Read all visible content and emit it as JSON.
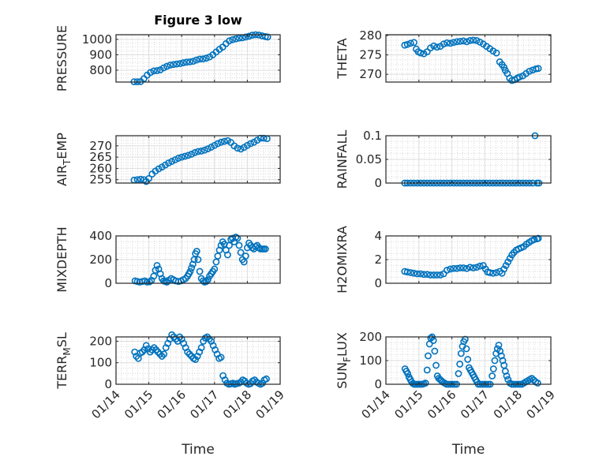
{
  "figure_title": "Figure 3 low",
  "chart_data": [
    {
      "type": "scatter",
      "id": "pressure",
      "title": "Figure 3 low",
      "ylabel": "PRESSURE",
      "ylabel_sub": null,
      "xlabel": "",
      "ylim": [
        723,
        1030
      ],
      "yticks": [
        800,
        900,
        1000
      ],
      "xlim_days": [
        0,
        5
      ],
      "xticks": [
        "01/14",
        "01/15",
        "01/16",
        "01/17",
        "01/18",
        "01/19"
      ],
      "show_xtick_labels": false,
      "grid": true,
      "marker": "o",
      "x_days": [
        0.55,
        0.65,
        0.75,
        0.85,
        0.95,
        1.05,
        1.15,
        1.25,
        1.35,
        1.45,
        1.55,
        1.65,
        1.75,
        1.85,
        1.95,
        2.05,
        2.15,
        2.25,
        2.35,
        2.45,
        2.55,
        2.65,
        2.75,
        2.85,
        2.95,
        3.05,
        3.15,
        3.25,
        3.35,
        3.45,
        3.55,
        3.65,
        3.75,
        3.85,
        3.95,
        4.05,
        4.15,
        4.25,
        4.35,
        4.45,
        4.55,
        4.62
      ],
      "y": [
        725,
        725,
        726,
        745,
        768,
        785,
        795,
        797,
        802,
        815,
        825,
        833,
        837,
        840,
        843,
        848,
        852,
        854,
        858,
        866,
        872,
        873,
        878,
        886,
        900,
        918,
        935,
        950,
        972,
        990,
        998,
        1003,
        1008,
        1010,
        1015,
        1020,
        1027,
        1030,
        1028,
        1023,
        1018,
        1015
      ]
    },
    {
      "type": "scatter",
      "id": "theta",
      "ylabel": "THETA",
      "ylabel_sub": null,
      "xlabel": "",
      "ylim": [
        268,
        280.2
      ],
      "yticks": [
        270,
        275,
        280
      ],
      "xlim_days": [
        0,
        5
      ],
      "xticks": [
        "01/14",
        "01/15",
        "01/16",
        "01/17",
        "01/18",
        "01/19"
      ],
      "show_xtick_labels": false,
      "grid": true,
      "marker": "o",
      "x_days": [
        0.57,
        0.65,
        0.75,
        0.85,
        0.92,
        0.98,
        1.05,
        1.15,
        1.25,
        1.35,
        1.45,
        1.55,
        1.65,
        1.75,
        1.85,
        1.95,
        2.05,
        2.15,
        2.25,
        2.35,
        2.45,
        2.55,
        2.65,
        2.75,
        2.85,
        2.95,
        3.05,
        3.15,
        3.25,
        3.35,
        3.45,
        3.52,
        3.58,
        3.62,
        3.68,
        3.75,
        3.82,
        3.9,
        3.98,
        4.05,
        4.15,
        4.25,
        4.35,
        4.45,
        4.55,
        4.62
      ],
      "y": [
        277.5,
        277.7,
        278.0,
        278.2,
        276.5,
        275.8,
        275.5,
        275.3,
        275.8,
        276.8,
        277.3,
        277.0,
        277.2,
        277.8,
        278.1,
        278.0,
        278.2,
        278.4,
        278.5,
        278.6,
        278.4,
        278.7,
        278.8,
        278.7,
        278.3,
        277.8,
        277.2,
        276.6,
        276.0,
        275.5,
        273.2,
        272.5,
        271.8,
        271.0,
        270.2,
        269.0,
        268.4,
        268.6,
        269.0,
        269.3,
        269.6,
        270.2,
        270.8,
        271.1,
        271.4,
        271.5
      ]
    },
    {
      "type": "scatter",
      "id": "air_temp",
      "ylabel": "AIR",
      "ylabel_sub": "T",
      "ylabel_rest": "EMP",
      "xlabel": "",
      "ylim": [
        253.5,
        274.5
      ],
      "yticks": [
        255,
        260,
        265,
        270
      ],
      "xlim_days": [
        0,
        5
      ],
      "xticks": [
        "01/14",
        "01/15",
        "01/16",
        "01/17",
        "01/18",
        "01/19"
      ],
      "show_xtick_labels": false,
      "grid": true,
      "marker": "o",
      "x_days": [
        0.55,
        0.65,
        0.75,
        0.85,
        0.92,
        1.0,
        1.1,
        1.2,
        1.3,
        1.4,
        1.5,
        1.6,
        1.7,
        1.8,
        1.9,
        2.0,
        2.1,
        2.2,
        2.3,
        2.4,
        2.5,
        2.6,
        2.7,
        2.8,
        2.9,
        3.0,
        3.1,
        3.2,
        3.3,
        3.4,
        3.5,
        3.6,
        3.7,
        3.8,
        3.9,
        4.0,
        4.1,
        4.2,
        4.3,
        4.4,
        4.5,
        4.6
      ],
      "y": [
        254.8,
        255.0,
        255.2,
        255.0,
        254.2,
        255.5,
        257.5,
        258.8,
        259.8,
        260.6,
        261.5,
        262.4,
        263.1,
        263.8,
        264.5,
        265.0,
        265.4,
        265.8,
        266.3,
        267.0,
        267.5,
        267.7,
        268.1,
        268.7,
        269.4,
        270.2,
        271.0,
        271.6,
        272.0,
        272.3,
        271.5,
        270.0,
        269.0,
        268.6,
        269.3,
        270.2,
        271.0,
        271.6,
        272.5,
        273.4,
        273.4,
        273.2
      ]
    },
    {
      "type": "scatter",
      "id": "rainfall",
      "ylabel": "RAINFALL",
      "ylabel_sub": null,
      "xlabel": "",
      "ylim": [
        0,
        0.1
      ],
      "yticks": [
        0,
        0.05,
        0.1
      ],
      "ytick_labels": [
        "0",
        "0.05",
        "0.1"
      ],
      "xlim_days": [
        0,
        5
      ],
      "xticks": [
        "01/14",
        "01/15",
        "01/16",
        "01/17",
        "01/18",
        "01/19"
      ],
      "show_xtick_labels": false,
      "grid": true,
      "marker": "o",
      "x_days": [
        0.57,
        0.65,
        0.75,
        0.85,
        0.95,
        1.05,
        1.15,
        1.25,
        1.35,
        1.45,
        1.55,
        1.65,
        1.75,
        1.85,
        1.95,
        2.05,
        2.15,
        2.25,
        2.35,
        2.45,
        2.55,
        2.65,
        2.75,
        2.85,
        2.95,
        3.05,
        3.15,
        3.25,
        3.35,
        3.45,
        3.55,
        3.65,
        3.75,
        3.85,
        3.95,
        4.05,
        4.15,
        4.25,
        4.35,
        4.45,
        4.52,
        4.58,
        4.64
      ],
      "y": [
        0,
        0,
        0,
        0,
        0,
        0,
        0,
        0,
        0,
        0,
        0,
        0,
        0,
        0,
        0,
        0,
        0,
        0,
        0,
        0,
        0,
        0,
        0,
        0,
        0,
        0,
        0,
        0,
        0,
        0,
        0,
        0,
        0,
        0,
        0,
        0,
        0,
        0,
        0,
        0,
        0.1,
        0,
        0
      ]
    },
    {
      "type": "scatter",
      "id": "mixdepth",
      "ylabel": "MIXDEPTH",
      "ylabel_sub": null,
      "xlabel": "",
      "ylim": [
        0,
        400
      ],
      "yticks": [
        0,
        200,
        400
      ],
      "xlim_days": [
        0,
        5
      ],
      "xticks": [
        "01/14",
        "01/15",
        "01/16",
        "01/17",
        "01/18",
        "01/19"
      ],
      "show_xtick_labels": false,
      "grid": true,
      "marker": "o",
      "x_days": [
        0.58,
        0.65,
        0.72,
        0.8,
        0.88,
        0.95,
        1.02,
        1.08,
        1.15,
        1.2,
        1.25,
        1.3,
        1.35,
        1.4,
        1.45,
        1.5,
        1.55,
        1.6,
        1.68,
        1.75,
        1.82,
        1.9,
        1.98,
        2.05,
        2.12,
        2.18,
        2.22,
        2.26,
        2.3,
        2.34,
        2.38,
        2.42,
        2.46,
        2.5,
        2.55,
        2.6,
        2.65,
        2.7,
        2.75,
        2.8,
        2.85,
        2.9,
        2.95,
        3.0,
        3.05,
        3.1,
        3.15,
        3.2,
        3.25,
        3.3,
        3.35,
        3.4,
        3.45,
        3.5,
        3.55,
        3.6,
        3.65,
        3.7,
        3.75,
        3.8,
        3.85,
        3.9,
        3.95,
        4.0,
        4.05,
        4.1,
        4.15,
        4.2,
        4.25,
        4.3,
        4.35,
        4.4,
        4.45,
        4.5,
        4.55
      ],
      "y": [
        20,
        15,
        10,
        15,
        20,
        10,
        12,
        25,
        60,
        110,
        150,
        120,
        80,
        40,
        20,
        15,
        10,
        25,
        40,
        30,
        20,
        15,
        20,
        30,
        40,
        60,
        80,
        100,
        130,
        160,
        200,
        250,
        270,
        200,
        100,
        40,
        20,
        10,
        15,
        30,
        60,
        80,
        100,
        120,
        180,
        230,
        280,
        320,
        350,
        330,
        280,
        240,
        320,
        370,
        380,
        350,
        390,
        380,
        320,
        260,
        200,
        180,
        230,
        300,
        340,
        320,
        300,
        290,
        310,
        320,
        300,
        290,
        290,
        290,
        290
      ]
    },
    {
      "type": "scatter",
      "id": "h2omixra",
      "ylabel": "H2OMIXRA",
      "ylabel_sub": null,
      "xlabel": "",
      "ylim": [
        0,
        4
      ],
      "yticks": [
        0,
        2,
        4
      ],
      "xlim_days": [
        0,
        5
      ],
      "xticks": [
        "01/14",
        "01/15",
        "01/16",
        "01/17",
        "01/18",
        "01/19"
      ],
      "show_xtick_labels": false,
      "grid": true,
      "marker": "o",
      "x_days": [
        0.57,
        0.65,
        0.75,
        0.85,
        0.95,
        1.05,
        1.15,
        1.25,
        1.35,
        1.45,
        1.55,
        1.65,
        1.75,
        1.85,
        1.95,
        2.05,
        2.15,
        2.25,
        2.35,
        2.45,
        2.55,
        2.65,
        2.75,
        2.85,
        2.95,
        3.02,
        3.08,
        3.15,
        3.25,
        3.35,
        3.45,
        3.52,
        3.58,
        3.64,
        3.7,
        3.76,
        3.82,
        3.88,
        3.95,
        4.02,
        4.1,
        4.18,
        4.26,
        4.34,
        4.42,
        4.5,
        4.58,
        4.62
      ],
      "y": [
        1.0,
        0.95,
        0.9,
        0.85,
        0.8,
        0.8,
        0.75,
        0.75,
        0.7,
        0.7,
        0.7,
        0.7,
        0.8,
        1.1,
        1.2,
        1.25,
        1.25,
        1.3,
        1.3,
        1.25,
        1.35,
        1.3,
        1.35,
        1.45,
        1.5,
        1.2,
        0.95,
        0.9,
        0.85,
        0.9,
        1.0,
        0.85,
        1.2,
        1.5,
        1.8,
        2.1,
        2.4,
        2.6,
        2.8,
        2.9,
        3.0,
        3.1,
        3.3,
        3.45,
        3.6,
        3.7,
        3.75,
        3.8
      ]
    },
    {
      "type": "scatter",
      "id": "terr_msl",
      "ylabel": "TERR",
      "ylabel_sub": "M",
      "ylabel_rest": "SL",
      "xlabel": "Time",
      "ylim": [
        0,
        220
      ],
      "yticks": [
        0,
        100,
        200
      ],
      "xlim_days": [
        0,
        5
      ],
      "xticks": [
        "01/14",
        "01/15",
        "01/16",
        "01/17",
        "01/18",
        "01/19"
      ],
      "show_xtick_labels": true,
      "grid": true,
      "marker": "o",
      "x_days": [
        0.57,
        0.62,
        0.68,
        0.74,
        0.8,
        0.86,
        0.92,
        0.98,
        1.04,
        1.1,
        1.16,
        1.22,
        1.28,
        1.34,
        1.4,
        1.46,
        1.52,
        1.58,
        1.64,
        1.7,
        1.76,
        1.82,
        1.88,
        1.94,
        2.0,
        2.06,
        2.12,
        2.18,
        2.24,
        2.3,
        2.36,
        2.42,
        2.48,
        2.54,
        2.6,
        2.66,
        2.72,
        2.78,
        2.84,
        2.9,
        2.96,
        3.02,
        3.08,
        3.14,
        3.2,
        3.26,
        3.32,
        3.38,
        3.44,
        3.5,
        3.56,
        3.62,
        3.68,
        3.74,
        3.8,
        3.86,
        3.92,
        3.98,
        4.04,
        4.1,
        4.16,
        4.22,
        4.28,
        4.34,
        4.4,
        4.46,
        4.52,
        4.58
      ],
      "y": [
        150,
        130,
        120,
        145,
        150,
        160,
        180,
        165,
        150,
        160,
        170,
        160,
        150,
        140,
        130,
        140,
        170,
        190,
        210,
        230,
        220,
        210,
        200,
        220,
        210,
        190,
        170,
        150,
        140,
        130,
        120,
        115,
        130,
        150,
        170,
        200,
        215,
        220,
        210,
        200,
        180,
        160,
        140,
        120,
        125,
        40,
        20,
        5,
        0,
        2,
        5,
        0,
        3,
        5,
        10,
        20,
        15,
        5,
        0,
        3,
        15,
        20,
        10,
        5,
        0,
        5,
        20,
        25
      ]
    },
    {
      "type": "scatter",
      "id": "sun_flux",
      "ylabel": "SUN",
      "ylabel_sub": "F",
      "ylabel_rest": "LUX",
      "xlabel": "Time",
      "ylim": [
        0,
        200
      ],
      "yticks": [
        0,
        100,
        200
      ],
      "xlim_days": [
        0,
        5
      ],
      "xticks": [
        "01/14",
        "01/15",
        "01/16",
        "01/17",
        "01/18",
        "01/19"
      ],
      "show_xtick_labels": true,
      "grid": true,
      "marker": "o",
      "x_days": [
        0.58,
        0.62,
        0.66,
        0.7,
        0.74,
        0.78,
        0.82,
        0.86,
        0.9,
        0.95,
        1.0,
        1.05,
        1.1,
        1.15,
        1.2,
        1.25,
        1.28,
        1.32,
        1.36,
        1.4,
        1.44,
        1.48,
        1.52,
        1.56,
        1.6,
        1.64,
        1.68,
        1.72,
        1.78,
        1.84,
        1.9,
        1.96,
        2.02,
        2.08,
        2.14,
        2.2,
        2.24,
        2.28,
        2.32,
        2.36,
        2.4,
        2.44,
        2.48,
        2.52,
        2.56,
        2.6,
        2.64,
        2.68,
        2.72,
        2.76,
        2.8,
        2.86,
        2.92,
        2.98,
        3.04,
        3.1,
        3.16,
        3.22,
        3.26,
        3.3,
        3.34,
        3.38,
        3.42,
        3.46,
        3.5,
        3.54,
        3.58,
        3.62,
        3.66,
        3.7,
        3.76,
        3.82,
        3.88,
        3.94,
        4.0,
        4.06,
        4.12,
        4.18,
        4.24,
        4.3,
        4.36,
        4.42,
        4.48,
        4.54,
        4.6
      ],
      "y": [
        65,
        55,
        45,
        30,
        20,
        10,
        3,
        0,
        0,
        0,
        0,
        0,
        0,
        2,
        5,
        60,
        120,
        170,
        195,
        200,
        185,
        140,
        80,
        35,
        25,
        20,
        15,
        10,
        5,
        0,
        0,
        0,
        0,
        0,
        0,
        45,
        85,
        130,
        160,
        180,
        190,
        150,
        105,
        70,
        60,
        50,
        40,
        30,
        20,
        10,
        0,
        0,
        0,
        0,
        0,
        0,
        0,
        35,
        65,
        100,
        130,
        150,
        165,
        140,
        120,
        100,
        80,
        55,
        35,
        20,
        5,
        0,
        0,
        0,
        0,
        0,
        0,
        5,
        10,
        15,
        20,
        25,
        18,
        10,
        5
      ]
    }
  ]
}
